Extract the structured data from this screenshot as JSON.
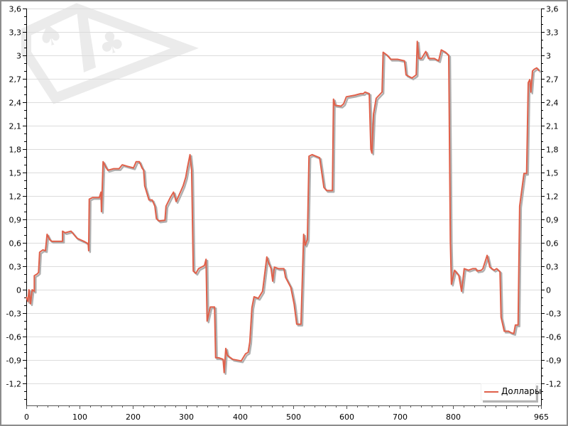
{
  "colors": {
    "series": "#e0604a",
    "shadow": "#b0b0b0",
    "grid": "#dcdcdc",
    "watermark": "#ebebeb",
    "frame": "#8c8c8c"
  },
  "watermark_icons": [
    "spade-icon",
    "club-icon"
  ],
  "chart_data": {
    "type": "line",
    "title": "",
    "xlabel": "",
    "ylabel": "",
    "xlim": [
      0,
      965
    ],
    "ylim": [
      -1.48,
      3.6
    ],
    "grid": true,
    "legend_position": "bottom-right",
    "x_ticks": [
      0,
      100,
      200,
      300,
      400,
      500,
      600,
      700,
      800,
      965
    ],
    "x_tick_labels": [
      "0",
      "100",
      "200",
      "300",
      "400",
      "500",
      "600",
      "700",
      "800",
      "965"
    ],
    "y_ticks": [
      3.6,
      3.3,
      3.0,
      2.7,
      2.4,
      2.1,
      1.8,
      1.5,
      1.2,
      0.9,
      0.6,
      0.3,
      0,
      -0.3,
      -0.6,
      -0.9,
      -1.2
    ],
    "y_tick_labels": [
      "3,6",
      "3,3",
      "3",
      "2,7",
      "2,4",
      "2,1",
      "1,8",
      "1,5",
      "1,2",
      "0,9",
      "0,6",
      "0,3",
      "0",
      "-0,3",
      "-0,6",
      "-0,9",
      "-1,2"
    ],
    "series": [
      {
        "name": "Доллары",
        "x": [
          0,
          3,
          5,
          8,
          11,
          15,
          15,
          20,
          23,
          25,
          31,
          36,
          39,
          44,
          48,
          68,
          68,
          73,
          84,
          95,
          108,
          116,
          117,
          118,
          124,
          137,
          140,
          141,
          144,
          150,
          153,
          164,
          174,
          180,
          190,
          201,
          206,
          212,
          217,
          220,
          222,
          230,
          236,
          241,
          244,
          249,
          260,
          262,
          270,
          276,
          281,
          289,
          294,
          299,
          302,
          307,
          310,
          313,
          318,
          323,
          334,
          337,
          339,
          345,
          353,
          355,
          361,
          369,
          371,
          374,
          377,
          387,
          403,
          411,
          416,
          419,
          423,
          427,
          435,
          443,
          451,
          454,
          459,
          462,
          465,
          473,
          483,
          486,
          496,
          502,
          507,
          515,
          520,
          523,
          527,
          530,
          536,
          550,
          558,
          563,
          574,
          576,
          579,
          590,
          595,
          600,
          616,
          627,
          632,
          635,
          643,
          646,
          648,
          651,
          656,
          667,
          669,
          677,
          683,
          696,
          709,
          712,
          723,
          731,
          733,
          736,
          741,
          749,
          754,
          765,
          773,
          778,
          786,
          792,
          795,
          797,
          803,
          811,
          816,
          821,
          829,
          837,
          843,
          845,
          853,
          856,
          864,
          869,
          877,
          882,
          888,
          890,
          896,
          904,
          909,
          914,
          917,
          922,
          925,
          933,
          938,
          941,
          944,
          946,
          949,
          952,
          957,
          962
        ],
        "y": [
          -0.09,
          -0.15,
          0,
          -0.18,
          0,
          -0.02,
          0.18,
          0.2,
          0.22,
          0.48,
          0.51,
          0.5,
          0.71,
          0.64,
          0.62,
          0.62,
          0.75,
          0.73,
          0.75,
          0.66,
          0.62,
          0.59,
          0.5,
          1.16,
          1.18,
          1.18,
          1.25,
          1.0,
          1.64,
          1.56,
          1.53,
          1.55,
          1.55,
          1.6,
          1.58,
          1.56,
          1.64,
          1.64,
          1.56,
          1.53,
          1.33,
          1.15,
          1.15,
          1.07,
          0.91,
          0.88,
          0.89,
          1.07,
          1.18,
          1.25,
          1.13,
          1.25,
          1.33,
          1.44,
          1.56,
          1.73,
          1.53,
          0.24,
          0.21,
          0.27,
          0.31,
          0.39,
          -0.4,
          -0.22,
          -0.22,
          -0.87,
          -0.87,
          -0.89,
          -1.06,
          -0.75,
          -0.84,
          -0.89,
          -0.91,
          -0.82,
          -0.8,
          -0.67,
          -0.23,
          -0.09,
          -0.11,
          -0.02,
          0.42,
          0.35,
          0.27,
          0.11,
          0.29,
          0.27,
          0.27,
          0.16,
          0.03,
          -0.18,
          -0.44,
          -0.44,
          0.71,
          0.57,
          0.64,
          1.71,
          1.73,
          1.69,
          1.31,
          1.27,
          1.27,
          2.44,
          2.36,
          2.35,
          2.38,
          2.47,
          2.49,
          2.51,
          2.51,
          2.53,
          2.51,
          1.8,
          1.75,
          2.25,
          2.45,
          2.53,
          3.04,
          3.0,
          2.95,
          2.95,
          2.93,
          2.75,
          2.71,
          2.75,
          3.18,
          2.96,
          2.96,
          3.05,
          2.96,
          2.96,
          2.93,
          3.07,
          3.04,
          3.0,
          0.62,
          0.07,
          0.25,
          0.18,
          -0.02,
          0.27,
          0.25,
          0.27,
          0.27,
          0.24,
          0.25,
          0.27,
          0.44,
          0.29,
          0.25,
          0.27,
          0.23,
          -0.35,
          -0.53,
          -0.53,
          -0.55,
          -0.56,
          -0.45,
          -0.45,
          1.07,
          1.49,
          1.49,
          2.65,
          2.69,
          2.53,
          2.8,
          2.82,
          2.84,
          2.8
        ]
      }
    ]
  }
}
